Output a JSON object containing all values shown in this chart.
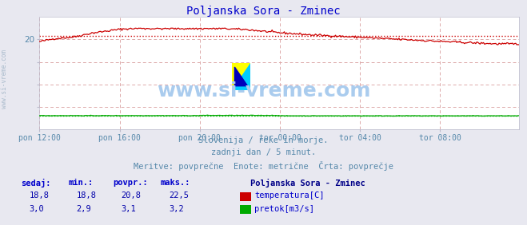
{
  "title": "Poljanska Sora - Zminec",
  "title_color": "#0000cc",
  "bg_color": "#e8e8f0",
  "plot_bg_color": "#ffffff",
  "grid_color": "#ddaaaa",
  "x_tick_labels": [
    "pon 12:00",
    "pon 16:00",
    "pon 20:00",
    "tor 00:00",
    "tor 04:00",
    "tor 08:00"
  ],
  "x_tick_positions": [
    0,
    72,
    144,
    216,
    288,
    360
  ],
  "total_points": 432,
  "ylim": [
    0,
    25
  ],
  "yticks": [
    5,
    10,
    15,
    20
  ],
  "temp_color": "#cc0000",
  "flow_color": "#00aa00",
  "avg_line_color": "#cc0000",
  "avg_flow_color": "#00aa00",
  "avg_temp": 20.8,
  "avg_flow": 3.1,
  "temp_min": 18.8,
  "temp_max": 22.5,
  "flow_min": 2.9,
  "flow_max": 3.2,
  "temp_current": 18.8,
  "flow_current": 3.0,
  "watermark": "www.si-vreme.com",
  "watermark_color": "#aaccee",
  "subtitle1": "Slovenija / reke in morje.",
  "subtitle2": "zadnji dan / 5 minut.",
  "subtitle3": "Meritve: povprečne  Enote: metrične  Črta: povprečje",
  "subtitle_color": "#5588aa",
  "legend_title": "Poljanska Sora - Zminec",
  "legend_title_color": "#000088",
  "legend_color": "#0000cc",
  "label_temp": "temperatura[C]",
  "label_flow": "pretok[m3/s]",
  "table_header_color": "#0000cc",
  "table_value_color": "#0000aa",
  "sidebar_text": "www.si-vreme.com",
  "sidebar_color": "#aabbcc",
  "logo_yellow": "#ffff00",
  "logo_cyan": "#00ccff",
  "logo_blue": "#0000bb",
  "tick_label_color": "#5588aa"
}
